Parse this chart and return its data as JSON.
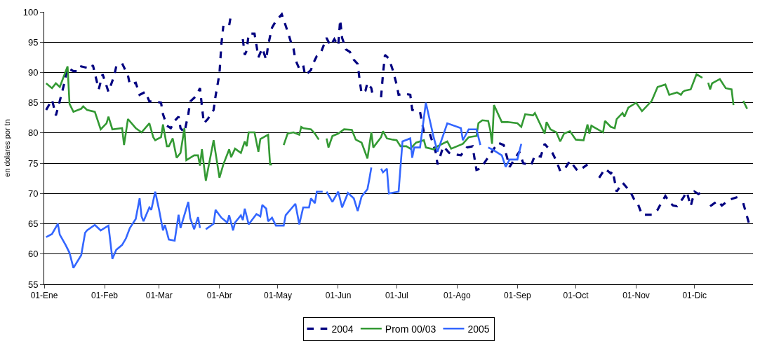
{
  "chart_data": {
    "type": "line",
    "ylabel": "en dolares por tn",
    "xlim": [
      "--01-01",
      "--12-31"
    ],
    "xticks": [
      {
        "value": "--01-01",
        "label": "01-Ene"
      },
      {
        "value": "--02-01",
        "label": "01-Feb"
      },
      {
        "value": "--03-01",
        "label": "01-Mar"
      },
      {
        "value": "--04-01",
        "label": "01-Abr"
      },
      {
        "value": "--05-01",
        "label": "01-May"
      },
      {
        "value": "--06-01",
        "label": "01-Jun"
      },
      {
        "value": "--07-01",
        "label": "01-Jul"
      },
      {
        "value": "--08-01",
        "label": "01-Ago"
      },
      {
        "value": "--09-01",
        "label": "01-Sep"
      },
      {
        "value": "--10-01",
        "label": "01-Oct"
      },
      {
        "value": "--11-01",
        "label": "01-Nov"
      },
      {
        "value": "--12-01",
        "label": "01-Dic"
      }
    ],
    "ylim": [
      55,
      100
    ],
    "yticks": [
      55,
      60,
      65,
      70,
      75,
      80,
      85,
      90,
      95,
      100
    ],
    "grid": "y",
    "legend": "bottom",
    "marker": "none",
    "series": [
      {
        "name": "2004",
        "color": "#000080",
        "line_style": "dashed",
        "x": [
          "--01-02",
          "--01-05",
          "--01-07",
          "--01-09",
          "--01-11",
          "--01-13",
          "--01-16",
          "--01-19",
          "--01-20",
          "--01-25",
          "--01-26",
          "--01-29",
          "--01-31",
          "--02-03",
          "--02-06",
          "--02-07",
          "--02-10",
          "--02-13",
          "--02-14",
          "--02-17",
          "--02-19",
          "--02-22",
          "--02-24",
          "--02-27",
          "--03-02",
          "--03-03",
          "--03-05",
          "--03-07",
          "--03-09",
          "--03-11",
          "--03-12",
          "--03-14",
          "--03-16",
          "--03-17",
          "--03-20",
          "--03-22",
          "--03-23",
          "--03-24",
          "--03-26",
          "--03-29",
          "--03-30",
          "--04-01",
          "--04-02",
          "--04-03",
          "--04-05",
          "--04-06",
          "--04-07",
          "--04-09",
          "--04-13",
          "--04-14",
          "--04-15",
          "--04-16",
          "--04-19",
          "--04-20",
          "--04-21",
          "--04-23",
          "--04-25",
          "--04-26",
          "--04-28",
          "--04-30",
          "--05-03",
          "--05-06",
          "--05-08",
          "--05-09",
          "--05-10",
          "--05-12",
          "--05-14",
          "--05-15",
          "--05-18",
          "--05-19",
          "--05-21",
          "--05-23",
          "--05-26",
          "--05-28",
          "--05-30",
          "--06-01",
          "--06-02",
          "--06-03",
          "--06-05",
          "--06-07",
          "--06-09",
          "--06-11",
          "--06-12",
          "--06-13",
          "--06-15",
          "--06-16",
          "--06-18",
          "--06-19",
          "--06-21",
          "--06-23",
          "--06-24",
          "--06-25",
          "--06-27",
          "--06-29",
          "--07-01",
          "--07-02",
          "--07-05",
          "--07-08",
          "--07-09",
          "--07-13",
          "--07-15",
          "--07-18",
          "--07-21",
          "--07-22",
          "--07-25",
          "--07-28",
          "--07-30",
          "--08-03",
          "--08-06",
          "--08-09",
          "--08-10",
          "--08-11",
          "--08-13",
          "--08-20",
          "--08-22",
          "--08-25",
          "--08-28",
          "--09-02",
          "--09-04",
          "--09-08",
          "--09-10",
          "--09-13",
          "--09-15",
          "--09-19",
          "--09-21",
          "--09-23",
          "--09-25",
          "--09-28",
          "--10-02",
          "--10-04",
          "--10-07",
          "--10-10",
          "--10-13",
          "--10-16",
          "--10-19",
          "--10-20",
          "--10-22",
          "--10-25",
          "--10-29",
          "--10-31",
          "--11-02",
          "--11-04",
          "--11-09",
          "--11-12",
          "--11-13",
          "--11-16",
          "--11-18",
          "--11-20",
          "--11-22",
          "--11-25",
          "--11-27",
          "--11-29",
          "--12-01",
          "--12-03",
          "--12-05",
          "--12-07",
          "--12-09",
          "--12-13",
          "--12-15",
          "--12-19",
          "--12-23",
          "--12-24",
          "--12-26",
          "--12-29"
        ],
        "values": [
          83.8,
          85.5,
          82.9,
          85.3,
          87.8,
          90.8,
          90.2,
          90.2,
          91,
          90.6,
          91.2,
          87.2,
          89.7,
          86.8,
          89.5,
          91,
          91.5,
          89.5,
          88,
          88.3,
          86.3,
          86.8,
          85.2,
          85.2,
          85,
          83.1,
          81.2,
          80.8,
          82,
          82.7,
          80.8,
          80.1,
          83.1,
          85.2,
          86.1,
          87.4,
          84.4,
          81.6,
          82.3,
          83.8,
          86.1,
          89.8,
          94.7,
          97.7,
          null,
          97.8,
          99.6,
          null,
          95.5,
          92.9,
          93.6,
          96.4,
          96.4,
          94.5,
          92.5,
          94,
          92.1,
          94.5,
          97.4,
          98.5,
          99.6,
          96.8,
          94.7,
          94,
          92.1,
          90.6,
          91.2,
          89.5,
          90.4,
          91.4,
          92.7,
          93.2,
          95.7,
          94.4,
          95.5,
          94.4,
          98.7,
          95.7,
          93.8,
          93.4,
          92.1,
          91.4,
          88.7,
          86.5,
          87,
          88.3,
          87.4,
          85.7,
          null,
          85.9,
          89.8,
          92.9,
          92.3,
          90.4,
          88,
          86.3,
          86.5,
          86.3,
          83.8,
          83.5,
          80.1,
          79.9,
          76.9,
          74.8,
          77.8,
          76.7,
          76.5,
          76.3,
          77.6,
          77.8,
          75.8,
          73.9,
          74.1,
          77.4,
          78.4,
          78,
          74.4,
          76.9,
          75,
          74.6,
          76.3,
          76.1,
          78.2,
          76.7,
          75.4,
          73.7,
          73.9,
          75.4,
          73.7,
          74.1,
          74.8,
          null,
          72.6,
          74.1,
          73.3,
          73.7,
          70.3,
          71.8,
          70.3,
          69,
          68.2,
          66.5,
          66.5,
          67.3,
          67.9,
          69.6,
          68.6,
          68,
          67.9,
          69.2,
          70.3,
          67.9,
          70.3,
          69.9,
          70.3,
          null,
          67.9,
          68.8,
          68,
          69,
          69.4,
          null,
          68.4,
          65
        ]
      },
      {
        "name": "Prom 00/03",
        "color": "#339933",
        "line_style": "solid",
        "x": [
          "--01-02",
          "--01-05",
          "--01-07",
          "--01-09",
          "--01-13",
          "--01-14",
          "--01-16",
          "--01-20",
          "--01-21",
          "--01-23",
          "--01-27",
          "--01-30",
          "--02-02",
          "--02-03",
          "--02-05",
          "--02-10",
          "--02-11",
          "--02-13",
          "--02-17",
          "--02-20",
          "--02-24",
          "--02-26",
          "--02-27",
          "--03-02",
          "--03-03",
          "--03-05",
          "--03-06",
          "--03-08",
          "--03-10",
          "--03-12",
          "--03-14",
          "--03-15",
          "--03-19",
          "--03-21",
          "--03-22",
          "--03-23",
          "--03-25",
          "--03-29",
          "--04-01",
          "--04-03",
          "--04-06",
          "--04-07",
          "--04-09",
          "--04-12",
          "--04-14",
          "--04-15",
          "--04-16",
          "--04-19",
          "--04-21",
          "--04-22",
          "--04-26",
          "--04-27",
          "--04-28",
          "--05-01",
          "--05-04",
          "--05-06",
          "--05-09",
          "--05-12",
          "--05-13",
          "--05-14",
          "--05-18",
          "--05-20",
          "--05-22",
          "--05-24",
          "--05-26",
          "--05-27",
          "--05-29",
          "--06-01",
          "--06-04",
          "--06-08",
          "--06-10",
          "--06-13",
          "--06-16",
          "--06-18",
          "--06-19",
          "--06-23",
          "--06-24",
          "--06-26",
          "--06-29",
          "--07-01",
          "--07-03",
          "--07-06",
          "--07-08",
          "--07-11",
          "--07-15",
          "--07-16",
          "--07-20",
          "--07-22",
          "--07-27",
          "--07-29",
          "--08-04",
          "--08-07",
          "--08-11",
          "--08-12",
          "--08-14",
          "--08-17",
          "--08-18",
          "--08-19",
          "--08-20",
          "--08-24",
          "--08-27",
          "--09-01",
          "--09-03",
          "--09-05",
          "--09-09",
          "--09-10",
          "--09-15",
          "--09-16",
          "--09-18",
          "--09-21",
          "--09-23",
          "--09-25",
          "--09-28",
          "--10-01",
          "--10-05",
          "--10-07",
          "--10-08",
          "--10-09",
          "--10-15",
          "--10-16",
          "--10-19",
          "--10-21",
          "--10-22",
          "--10-25",
          "--10-26",
          "--10-28",
          "--11-01",
          "--11-04",
          "--11-09",
          "--11-12",
          "--11-16",
          "--11-18",
          "--11-22",
          "--11-24",
          "--11-25",
          "--11-26",
          "--11-29",
          "--12-02",
          "--12-05",
          "--12-06",
          "--12-08",
          "--12-09",
          "--12-10",
          "--12-14",
          "--12-17",
          "--12-20",
          "--12-21",
          "--12-23",
          "--12-26",
          "--12-28"
        ],
        "values": [
          88.2,
          87.4,
          88.2,
          87.6,
          91,
          84.8,
          83.5,
          84,
          84.4,
          83.8,
          83.5,
          80.6,
          81.6,
          82.7,
          80.6,
          80.8,
          78,
          82.3,
          80.8,
          80.1,
          81.6,
          79.3,
          78.8,
          79.3,
          81.4,
          77.8,
          77.8,
          79.1,
          75.9,
          76.7,
          80.8,
          75.5,
          76.3,
          76.3,
          74.6,
          77.3,
          72.1,
          78.8,
          72.6,
          74.8,
          77.3,
          76,
          77.4,
          76.7,
          78.6,
          77.8,
          80.1,
          80.1,
          76.9,
          79,
          79.7,
          74.8,
          74.8,
          null,
          78,
          79.9,
          80.1,
          79.7,
          81,
          80.8,
          80.6,
          79.9,
          78.9,
          null,
          79.1,
          77.6,
          79.5,
          79.9,
          80.6,
          80.5,
          78.9,
          78.4,
          75.8,
          80.1,
          77.6,
          79.3,
          80.3,
          79.1,
          78.9,
          78.8,
          77.8,
          77.8,
          77.4,
          78.4,
          78.8,
          77.6,
          77.3,
          77.8,
          78.6,
          77.4,
          78.2,
          79.3,
          79.5,
          81.6,
          82.1,
          82,
          80.6,
          78.2,
          84.6,
          81.8,
          81.8,
          81.6,
          81,
          83.1,
          82.9,
          83.3,
          79.9,
          81.8,
          80.6,
          80.1,
          78.6,
          79.9,
          80.3,
          78.9,
          78.8,
          81.4,
          79.9,
          81.2,
          80.1,
          82,
          81,
          80.8,
          82.3,
          83.3,
          82.7,
          84.2,
          85,
          83.6,
          85.3,
          87.6,
          88,
          86.3,
          86.7,
          86.3,
          86.8,
          87,
          87.2,
          89.7,
          89.1,
          null,
          88.3,
          87.2,
          88.2,
          88.9,
          87.4,
          87.2,
          84.6,
          null,
          85.3,
          84
        ]
      },
      {
        "name": "2005",
        "color": "#3366ff",
        "line_style": "solid",
        "x": [
          "--01-02",
          "--01-05",
          "--01-08",
          "--01-09",
          "--01-12",
          "--01-14",
          "--01-16",
          "--01-20",
          "--01-22",
          "--01-23",
          "--01-27",
          "--01-30",
          "--02-03",
          "--02-05",
          "--02-07",
          "--02-10",
          "--02-12",
          "--02-14",
          "--02-17",
          "--02-19",
          "--02-20",
          "--02-21",
          "--02-24",
          "--02-25",
          "--02-27",
          "--03-01",
          "--03-03",
          "--03-04",
          "--03-06",
          "--03-09",
          "--03-11",
          "--03-12",
          "--03-16",
          "--03-17",
          "--03-19",
          "--03-21",
          "--03-22",
          "--03-23",
          "--03-25",
          "--03-29",
          "--03-30",
          "--04-02",
          "--04-05",
          "--04-06",
          "--04-08",
          "--04-09",
          "--04-12",
          "--04-13",
          "--04-14",
          "--04-16",
          "--04-20",
          "--04-22",
          "--04-23",
          "--04-25",
          "--04-26",
          "--04-28",
          "--04-30",
          "--05-04",
          "--05-05",
          "--05-10",
          "--05-12",
          "--05-14",
          "--05-17",
          "--05-18",
          "--05-20",
          "--05-21",
          "--05-24",
          "--05-25",
          "--05-26",
          "--05-29",
          "--06-01",
          "--06-03",
          "--06-06",
          "--06-09",
          "--06-11",
          "--06-13",
          "--06-16",
          "--06-17",
          "--06-18",
          "--06-20",
          "--06-23",
          "--06-24",
          "--06-26",
          "--06-27",
          "--07-02",
          "--07-04",
          "--07-08",
          "--07-09",
          "--07-10",
          "--07-13",
          "--07-16",
          "--07-20",
          "--07-22",
          "--07-27",
          "--08-03",
          "--08-04",
          "--08-07",
          "--08-11",
          "--08-13",
          "--08-15",
          "--08-17",
          "--08-19",
          "--08-24",
          "--08-26",
          "--08-28",
          "--09-01",
          "--09-03"
        ],
        "values": [
          62.8,
          63.3,
          65,
          63.2,
          61.5,
          60.2,
          57.7,
          59.8,
          63.5,
          63.9,
          64.8,
          63.9,
          64.7,
          59.2,
          60.7,
          61.5,
          62.6,
          64.3,
          65.8,
          69.2,
          66.2,
          65.4,
          67.7,
          67.3,
          70.3,
          67.3,
          63.9,
          64.8,
          62.4,
          62.2,
          66.5,
          64.3,
          68.6,
          65.9,
          64.1,
          66.1,
          64.3,
          null,
          64.1,
          65,
          67.3,
          66,
          65.2,
          66.4,
          63.9,
          65.2,
          66.4,
          65.6,
          67.5,
          64.9,
          66.6,
          66.2,
          68.1,
          67.5,
          65.4,
          66,
          64.7,
          64.7,
          66.4,
          68.3,
          64.9,
          67.7,
          67.7,
          69.2,
          68.4,
          70.3,
          70.3,
          null,
          70.3,
          68.6,
          70.3,
          67.7,
          70.1,
          69.2,
          67.1,
          69.5,
          70.7,
          72.4,
          74.3,
          null,
          74.1,
          73.5,
          74.1,
          70,
          70.3,
          78.6,
          79.1,
          75.9,
          77.6,
          77.6,
          85,
          79.3,
          76.9,
          81.6,
          80.8,
          78.8,
          80.6,
          80.6,
          78,
          null,
          77.6,
          77.3,
          76.3,
          74.4,
          75.6,
          75.6,
          78.2
        ]
      }
    ]
  }
}
